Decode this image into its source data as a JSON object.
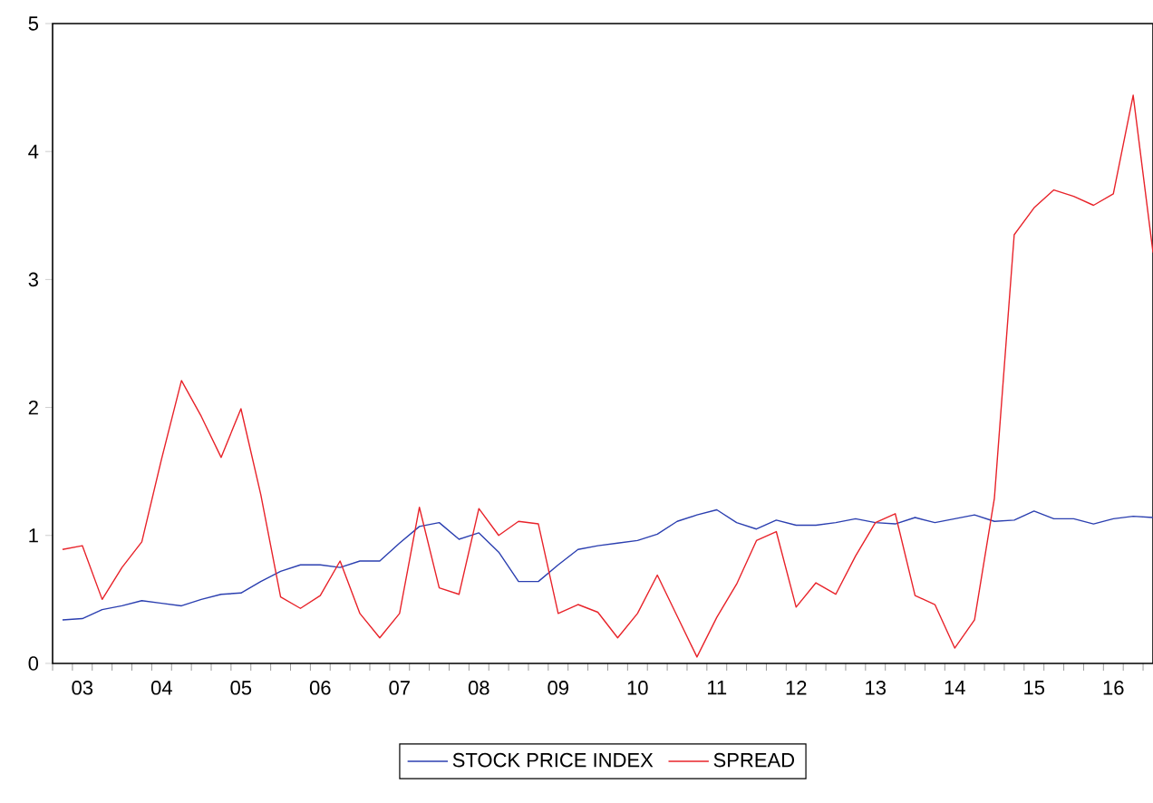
{
  "chart_data": {
    "type": "line",
    "legend": "bottom",
    "marker": "none",
    "line_style": "solid",
    "categories": [
      null,
      "03",
      null,
      null,
      null,
      "04",
      null,
      null,
      null,
      "05",
      null,
      null,
      null,
      "06",
      null,
      null,
      null,
      "07",
      null,
      null,
      null,
      "08",
      null,
      null,
      null,
      "09",
      null,
      null,
      null,
      "10",
      null,
      null,
      null,
      "11",
      null,
      null,
      null,
      "12",
      null,
      null,
      null,
      "13",
      null,
      null,
      null,
      "14",
      null,
      null,
      null,
      "15",
      null,
      null,
      null,
      "16",
      null,
      null
    ],
    "ylim": [
      0,
      5
    ],
    "yticks": [
      0,
      1,
      2,
      3,
      4,
      5
    ],
    "series": [
      {
        "name": "STOCK PRICE INDEX",
        "color": "#2b3fb0",
        "values": [
          0.34,
          0.35,
          0.42,
          0.45,
          0.49,
          0.47,
          0.45,
          0.5,
          0.54,
          0.55,
          0.64,
          0.72,
          0.77,
          0.77,
          0.75,
          0.8,
          0.8,
          0.94,
          1.07,
          1.1,
          0.97,
          1.02,
          0.87,
          0.64,
          0.64,
          0.77,
          0.89,
          0.92,
          0.94,
          0.96,
          1.01,
          1.11,
          1.16,
          1.2,
          1.1,
          1.05,
          1.12,
          1.08,
          1.08,
          1.1,
          1.13,
          1.1,
          1.09,
          1.14,
          1.1,
          1.13,
          1.16,
          1.11,
          1.12,
          1.19,
          1.13,
          1.13,
          1.09,
          1.13,
          1.15,
          1.14
        ]
      },
      {
        "name": "SPREAD",
        "color": "#e8232a",
        "values": [
          0.89,
          0.92,
          0.5,
          0.75,
          0.95,
          1.6,
          2.21,
          1.93,
          1.61,
          1.99,
          1.32,
          0.52,
          0.43,
          0.53,
          0.8,
          0.39,
          0.2,
          0.39,
          1.22,
          0.59,
          0.54,
          1.21,
          1.0,
          1.11,
          1.09,
          0.39,
          0.46,
          0.4,
          0.2,
          0.39,
          0.69,
          0.37,
          0.05,
          0.36,
          0.62,
          0.96,
          1.03,
          0.44,
          0.63,
          0.54,
          0.84,
          1.1,
          1.17,
          0.53,
          0.46,
          0.12,
          0.34,
          1.29,
          3.35,
          3.56,
          3.7,
          3.65,
          3.58,
          3.67,
          4.44,
          3.21
        ]
      }
    ]
  }
}
